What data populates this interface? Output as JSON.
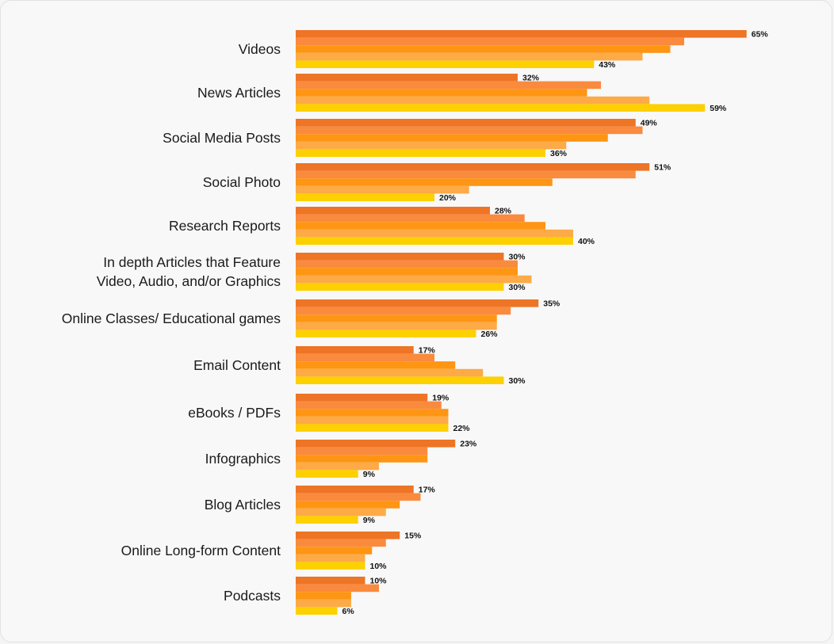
{
  "chart_data": {
    "type": "bar",
    "orientation": "horizontal",
    "categories": [
      [
        "Videos"
      ],
      [
        "News Articles"
      ],
      [
        "Social Media Posts"
      ],
      [
        "Social Photo"
      ],
      [
        "Research Reports"
      ],
      [
        "In depth Articles that Feature",
        "Video, Audio, and/or Graphics"
      ],
      [
        "Online Classes/ Educational games"
      ],
      [
        "Email Content"
      ],
      [
        "eBooks / PDFs"
      ],
      [
        "Infographics"
      ],
      [
        "Blog Articles"
      ],
      [
        "Online Long-form Content"
      ],
      [
        "Podcasts"
      ]
    ],
    "series": [
      {
        "color": "#ee7426",
        "values": [
          65,
          32,
          49,
          51,
          28,
          30,
          35,
          17,
          19,
          23,
          17,
          15,
          10
        ]
      },
      {
        "color": "#fa8a3e",
        "values": [
          56,
          44,
          50,
          49,
          33,
          32,
          31,
          20,
          21,
          19,
          18,
          13,
          12
        ]
      },
      {
        "color": "#fe9513",
        "values": [
          54,
          42,
          45,
          37,
          36,
          32,
          29,
          23,
          22,
          19,
          15,
          11,
          8
        ]
      },
      {
        "color": "#fdaa47",
        "values": [
          50,
          51,
          39,
          25,
          40,
          34,
          29,
          27,
          22,
          12,
          13,
          10,
          8
        ]
      },
      {
        "color": "#fdd000",
        "values": [
          43,
          59,
          36,
          20,
          40,
          30,
          26,
          30,
          22,
          9,
          9,
          10,
          6
        ]
      }
    ],
    "value_labels": {
      "first": [
        "65%",
        "32%",
        "49%",
        "51%",
        "28%",
        "30%",
        "35%",
        "17%",
        "19%",
        "23%",
        "17%",
        "15%",
        "10%"
      ],
      "last": [
        "43%",
        "59%",
        "36%",
        "20%",
        "40%",
        "30%",
        "26%",
        "30%",
        "22%",
        "9%",
        "9%",
        "10%",
        "6%"
      ]
    },
    "xlim": [
      0,
      70
    ],
    "grid": false,
    "legend": "none"
  }
}
